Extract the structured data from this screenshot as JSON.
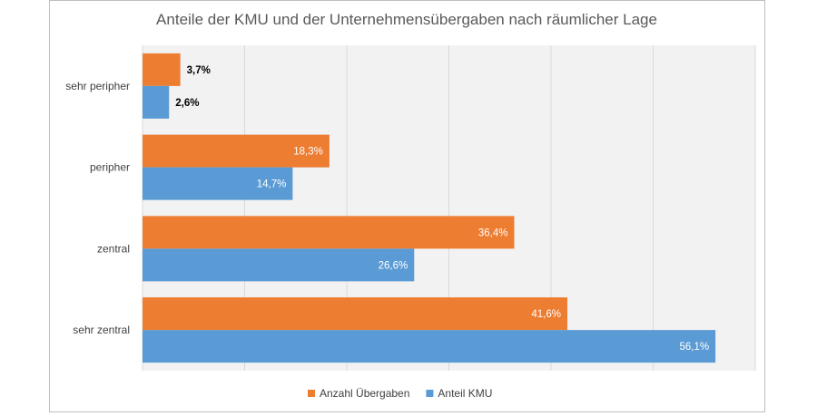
{
  "chart_data": {
    "type": "bar",
    "orientation": "horizontal",
    "title": "Anteile der KMU und der Unternehmensübergaben nach räumlicher Lage",
    "categories": [
      "sehr peripher",
      "peripher",
      "zentral",
      "sehr zentral"
    ],
    "series": [
      {
        "name": "Anzahl Übergaben",
        "color": "#ED7D31",
        "values": [
          3.7,
          18.3,
          36.4,
          41.6
        ],
        "labels": [
          "3,7%",
          "18,3%",
          "36,4%",
          "41,6%"
        ]
      },
      {
        "name": "Anteil KMU",
        "color": "#5B9BD5",
        "values": [
          2.6,
          14.7,
          26.6,
          56.1
        ],
        "labels": [
          "2,6%",
          "14,7%",
          "26,6%",
          "56,1%"
        ]
      }
    ],
    "xlim": [
      0,
      60
    ],
    "x_gridlines": [
      0,
      10,
      20,
      30,
      40,
      50,
      60
    ],
    "grid": true,
    "legend": "bottom",
    "xlabel": "",
    "ylabel": ""
  }
}
